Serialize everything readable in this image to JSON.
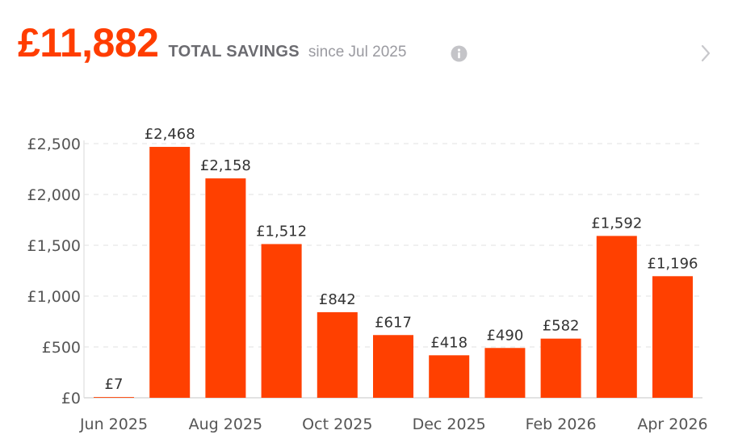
{
  "header": {
    "total_amount": "£11,882",
    "total_label": "TOTAL SAVINGS",
    "since_label": "since Jul 2025",
    "info_icon": "info-icon",
    "next_icon": "chevron-right-icon"
  },
  "colors": {
    "accent": "#ff3d00",
    "bar": "#ff4000",
    "muted_text": "#6b6b70",
    "axis_text": "#555555",
    "grid": "#e6e6e6"
  },
  "chart_data": {
    "type": "bar",
    "categories": [
      "Jun 2025",
      "Jul 2025",
      "Aug 2025",
      "Sep 2025",
      "Oct 2025",
      "Nov 2025",
      "Dec 2025",
      "Jan 2026",
      "Feb 2026",
      "Mar 2026",
      "Apr 2026"
    ],
    "values": [
      7,
      2468,
      2158,
      1512,
      842,
      617,
      418,
      490,
      582,
      1592,
      1196
    ],
    "value_labels": [
      "£7",
      "£2,468",
      "£2,158",
      "£1,512",
      "£842",
      "£617",
      "£418",
      "£490",
      "£582",
      "£1,592",
      "£1,196"
    ],
    "x_tick_labels": [
      "Jun 2025",
      "",
      "Aug 2025",
      "",
      "Oct 2025",
      "",
      "Dec 2025",
      "",
      "Feb 2026",
      "",
      "Apr 2026"
    ],
    "y_ticks": [
      0,
      500,
      1000,
      1500,
      2000,
      2500
    ],
    "y_tick_labels": [
      "£0",
      "£500",
      "£1,000",
      "£1,500",
      "£2,000",
      "£2,500"
    ],
    "ylim": [
      0,
      2500
    ],
    "grid": true,
    "grid_style": "dashed-horizontal",
    "title": "",
    "xlabel": "",
    "ylabel": ""
  }
}
